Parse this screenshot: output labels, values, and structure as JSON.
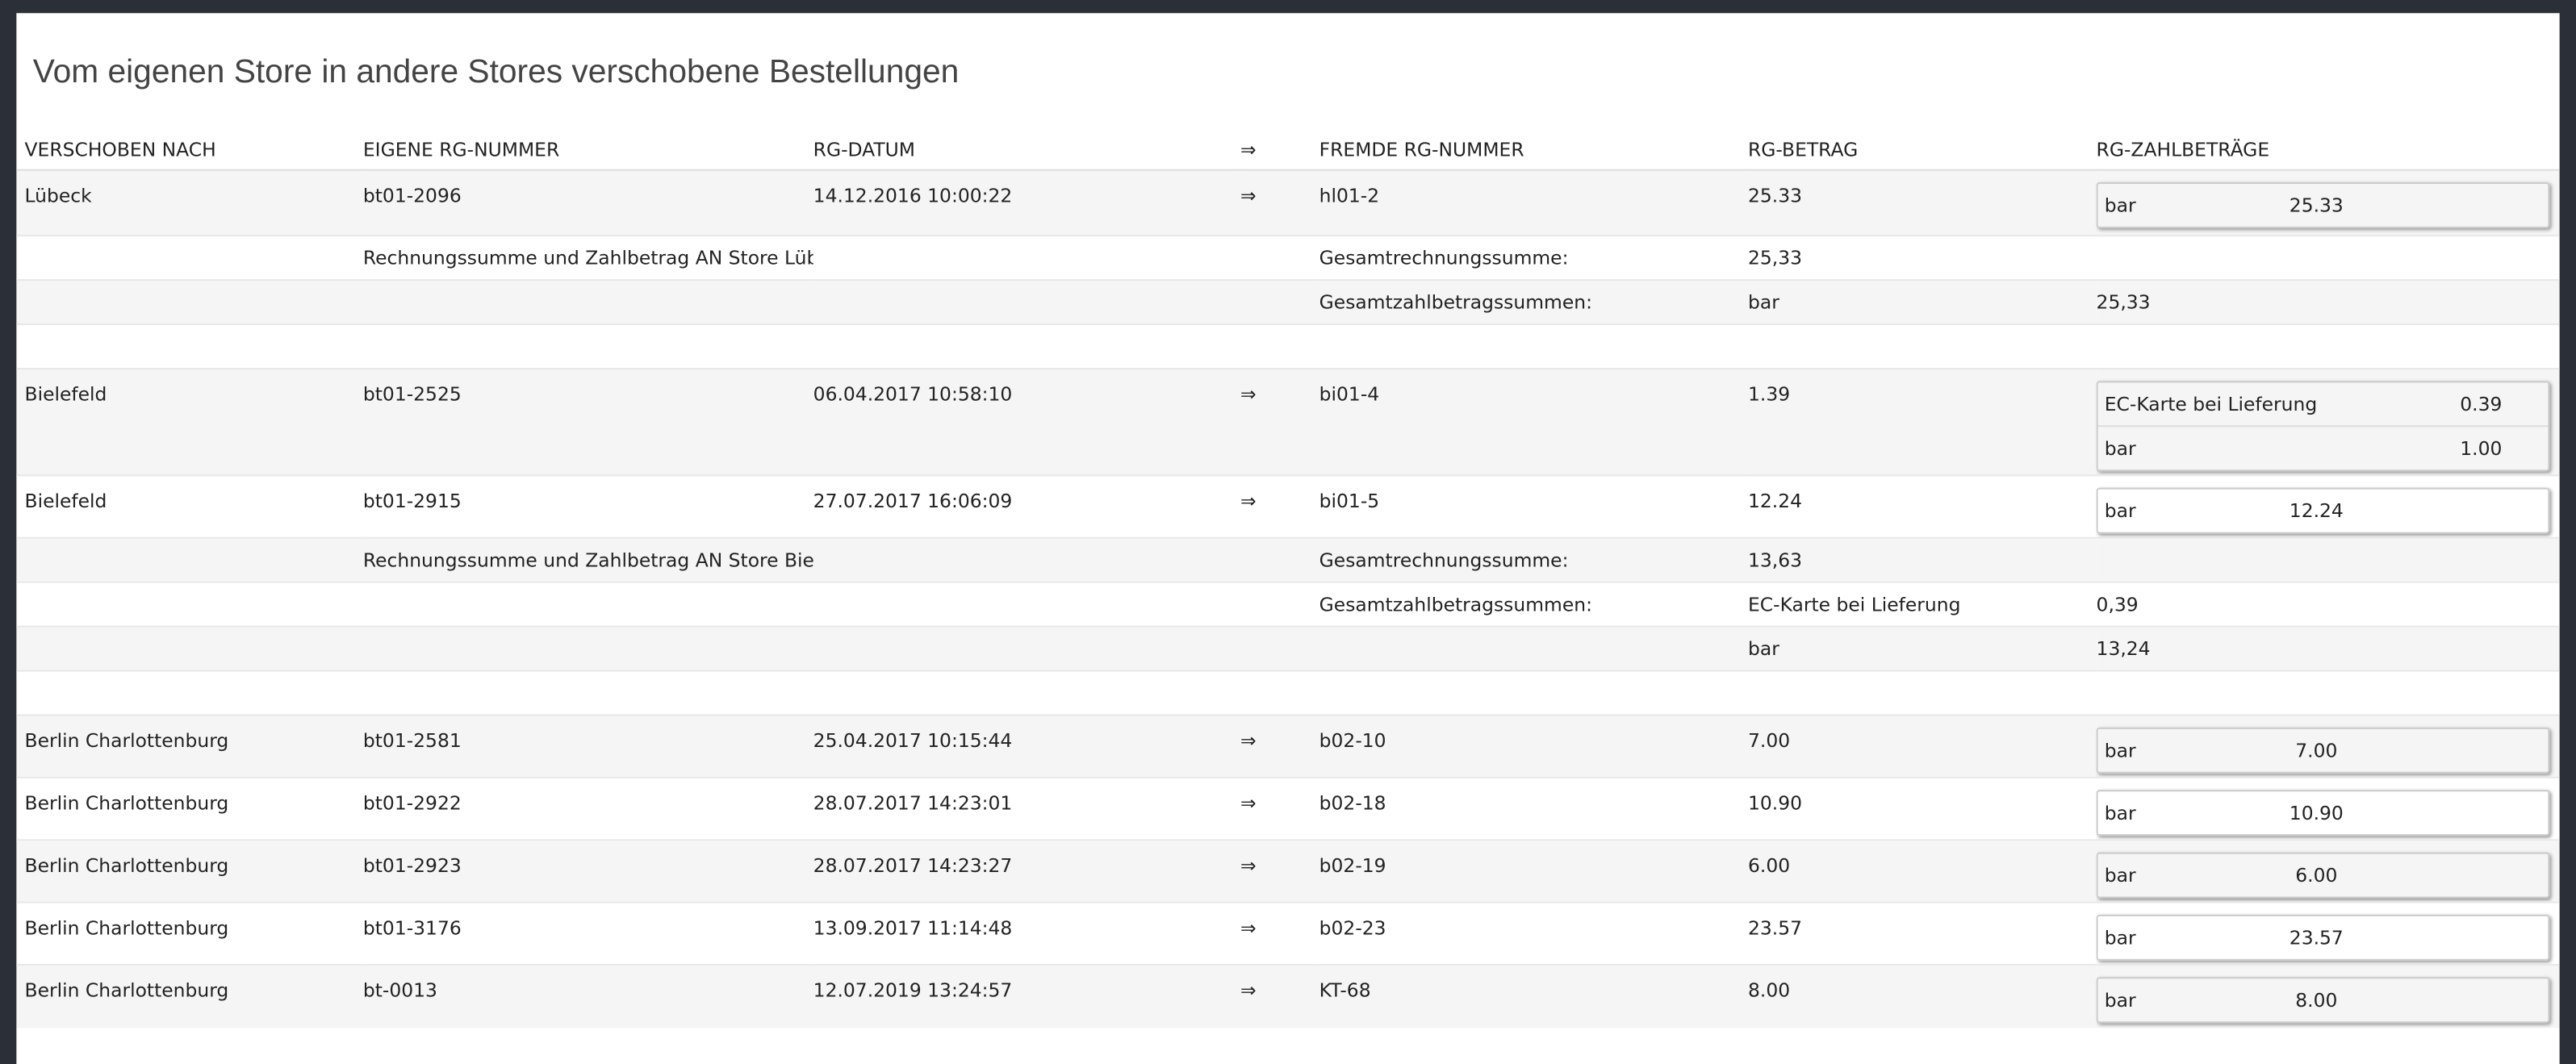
{
  "header": {
    "title": "Vom eigenen Store in andere Stores verschobene Bestellungen"
  },
  "table": {
    "columns": [
      "VERSCHOBEN NACH",
      "EIGENE RG-NUMMER",
      "RG-DATUM",
      "⇒",
      "FREMDE RG-NUMMER",
      "RG-BETRAG",
      "RG-ZAHLBETRÄGE"
    ],
    "rows": [
      [
        "Lübeck",
        "bt01-2096",
        "14.12.2016 10:00:22",
        "⇒",
        "hl01-2",
        "25.33",
        [
          {
            "method": "bar",
            "amount": "25.33"
          }
        ]
      ],
      [
        null,
        "Rechnungssumme und Zahlbetrag AN Store Lübeck",
        null,
        null,
        "Gesamtrechnungssumme:",
        "25,33",
        null
      ],
      [
        null,
        null,
        null,
        null,
        "Gesamtzahlbetragssummen:",
        "bar",
        "25,33"
      ],
      [
        null,
        null,
        null,
        null,
        null,
        null,
        null
      ],
      [
        "Bielefeld",
        "bt01-2525",
        "06.04.2017 10:58:10",
        "⇒",
        "bi01-4",
        "1.39",
        [
          {
            "method": "EC-Karte bei Lieferung",
            "amount": "0.39"
          },
          {
            "method": "bar",
            "amount": "1.00"
          }
        ]
      ],
      [
        "Bielefeld",
        "bt01-2915",
        "27.07.2017 16:06:09",
        "⇒",
        "bi01-5",
        "12.24",
        [
          {
            "method": "bar",
            "amount": "12.24"
          }
        ]
      ],
      [
        null,
        "Rechnungssumme und Zahlbetrag AN Store Bielefeld",
        null,
        null,
        "Gesamtrechnungssumme:",
        "13,63",
        null
      ],
      [
        null,
        null,
        null,
        null,
        "Gesamtzahlbetragssummen:",
        "EC-Karte bei Lieferung",
        "0,39"
      ],
      [
        null,
        null,
        null,
        null,
        null,
        "bar",
        "13,24"
      ],
      [
        null,
        null,
        null,
        null,
        null,
        null,
        null
      ],
      [
        "Berlin Charlottenburg",
        "bt01-2581",
        "25.04.2017 10:15:44",
        "⇒",
        "b02-10",
        "7.00",
        [
          {
            "method": "bar",
            "amount": "7.00"
          }
        ]
      ],
      [
        "Berlin Charlottenburg",
        "bt01-2922",
        "28.07.2017 14:23:01",
        "⇒",
        "b02-18",
        "10.90",
        [
          {
            "method": "bar",
            "amount": "10.90"
          }
        ]
      ],
      [
        "Berlin Charlottenburg",
        "bt01-2923",
        "28.07.2017 14:23:27",
        "⇒",
        "b02-19",
        "6.00",
        [
          {
            "method": "bar",
            "amount": "6.00"
          }
        ]
      ],
      [
        "Berlin Charlottenburg",
        "bt01-3176",
        "13.09.2017 11:14:48",
        "⇒",
        "b02-23",
        "23.57",
        [
          {
            "method": "bar",
            "amount": "23.57"
          }
        ]
      ],
      [
        "Berlin Charlottenburg",
        "bt-0013",
        "12.07.2019 13:24:57",
        "⇒",
        "KT-68",
        "8.00",
        [
          {
            "method": "bar",
            "amount": "8.00"
          }
        ]
      ]
    ]
  }
}
